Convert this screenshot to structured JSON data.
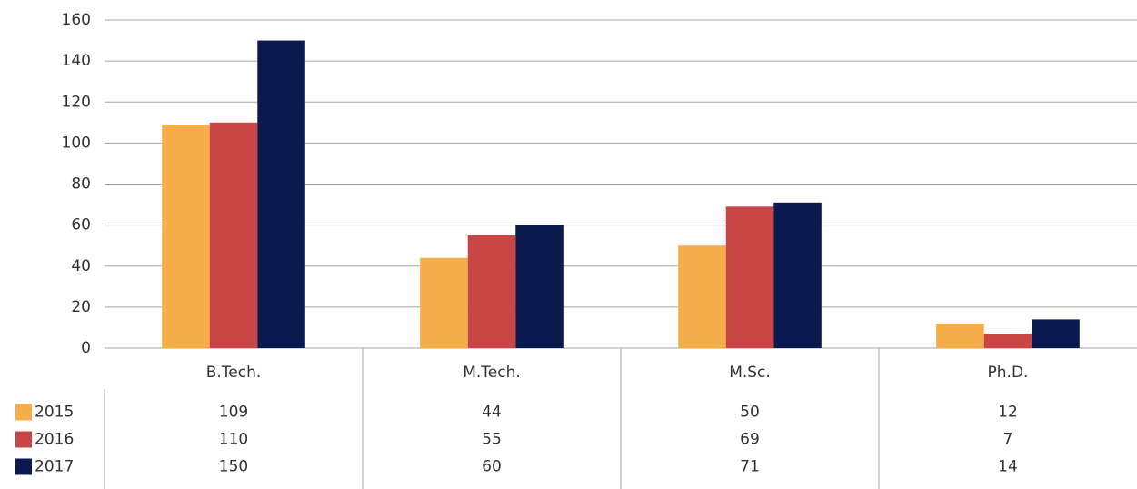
{
  "chart_data": {
    "type": "bar",
    "categories": [
      "B.Tech.",
      "M.Tech.",
      "M.Sc.",
      "Ph.D."
    ],
    "series": [
      {
        "name": "2015",
        "color": "#f5ae4a",
        "values": [
          109,
          44,
          50,
          12
        ]
      },
      {
        "name": "2016",
        "color": "#c94646",
        "values": [
          110,
          55,
          69,
          7
        ]
      },
      {
        "name": "2017",
        "color": "#0b1a4e",
        "values": [
          150,
          60,
          71,
          14
        ]
      }
    ],
    "ylim": [
      0,
      160
    ],
    "yticks": [
      0,
      20,
      40,
      60,
      80,
      100,
      120,
      140,
      160
    ],
    "grid": true,
    "data_table": true
  }
}
